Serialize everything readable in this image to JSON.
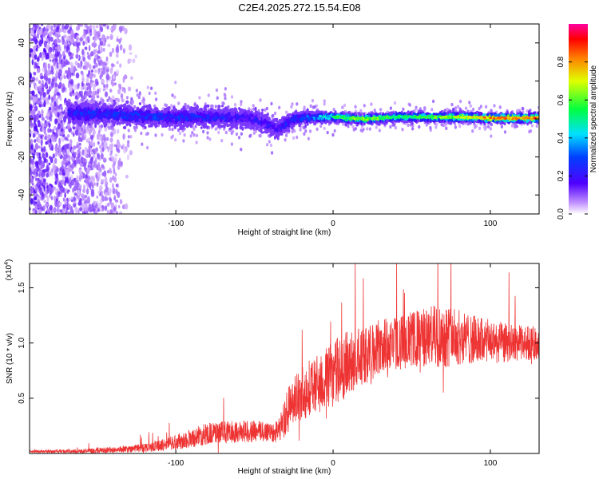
{
  "title": "C2E4.2025.272.15.54.E08",
  "chart_data": [
    {
      "type": "heatmap",
      "title": "",
      "xlabel": "Height of straight line (km)",
      "ylabel": "Frequency (Hz)",
      "xlim": [
        -193,
        131
      ],
      "ylim": [
        -50,
        50
      ],
      "xticks": [
        -100,
        0,
        100
      ],
      "yticks": [
        -40,
        -20,
        0,
        20,
        40
      ],
      "colorbar": {
        "label": "Normalized spectral amplitude",
        "range": [
          0,
          1
        ],
        "ticks": [
          0.0,
          0.2,
          0.4,
          0.6,
          0.8
        ],
        "tick_labels": [
          "0.0",
          "0.2",
          "0.4",
          "0.6",
          "0.8"
        ]
      },
      "band_profile": {
        "x": [
          -190,
          -160,
          -130,
          -110,
          -90,
          -70,
          -50,
          -35,
          -25,
          -10,
          0,
          20,
          40,
          60,
          80,
          100,
          130
        ],
        "center_hz": [
          3,
          3,
          2,
          1,
          1,
          1,
          0,
          -5,
          0,
          1,
          1,
          0,
          1,
          1,
          1,
          0.5,
          0.5
        ],
        "halfwidth_hz": [
          6,
          6,
          5.5,
          5,
          5,
          5,
          5,
          4.5,
          3.5,
          3,
          2.5,
          2.5,
          2.5,
          2.5,
          2.5,
          2.5,
          2.5
        ],
        "peak_amplitude": [
          0.2,
          0.3,
          0.3,
          0.3,
          0.3,
          0.25,
          0.25,
          0.25,
          0.35,
          0.45,
          0.55,
          0.7,
          0.55,
          0.6,
          0.7,
          0.85,
          0.9
        ]
      },
      "noise_region": {
        "x": [
          -193,
          -125
        ],
        "hz": [
          -50,
          50
        ],
        "amplitude": 0.15
      }
    },
    {
      "type": "line",
      "title": "",
      "xlabel": "Height of straight line (km)",
      "ylabel": "SNR (10 * v/v)",
      "y_multiplier": "(x10",
      "y_multiplier_exp": "4",
      "y_multiplier_close": ")",
      "xlim": [
        -193,
        131
      ],
      "ylim": [
        0,
        1.72
      ],
      "xticks": [
        -100,
        0,
        100
      ],
      "yticks": [
        0.5,
        1.0,
        1.5
      ],
      "ytick_labels": [
        "0.5",
        "1.0",
        "1.5"
      ],
      "series": [
        {
          "name": "SNR",
          "color": "#ee3333",
          "envelope": {
            "x": [
              -193,
              -160,
              -130,
              -110,
              -95,
              -80,
              -60,
              -45,
              -35,
              -28,
              -20,
              -10,
              0,
              10,
              20,
              30,
              40,
              50,
              60,
              70,
              80,
              90,
              100,
              110,
              120,
              131
            ],
            "mean": [
              0.02,
              0.02,
              0.04,
              0.07,
              0.12,
              0.18,
              0.2,
              0.2,
              0.2,
              0.4,
              0.55,
              0.62,
              0.72,
              0.82,
              0.88,
              0.96,
              1.0,
              1.03,
              1.05,
              1.07,
              1.05,
              1.03,
              1.01,
              1.0,
              1.0,
              1.0
            ],
            "spread": [
              0.01,
              0.02,
              0.03,
              0.05,
              0.08,
              0.1,
              0.1,
              0.1,
              0.1,
              0.22,
              0.24,
              0.28,
              0.3,
              0.3,
              0.26,
              0.26,
              0.25,
              0.25,
              0.28,
              0.3,
              0.25,
              0.22,
              0.2,
              0.18,
              0.16,
              0.15
            ]
          }
        }
      ]
    }
  ],
  "colors": {
    "axis": "#000000",
    "line": "#ee3333",
    "background": "#ffffff"
  }
}
